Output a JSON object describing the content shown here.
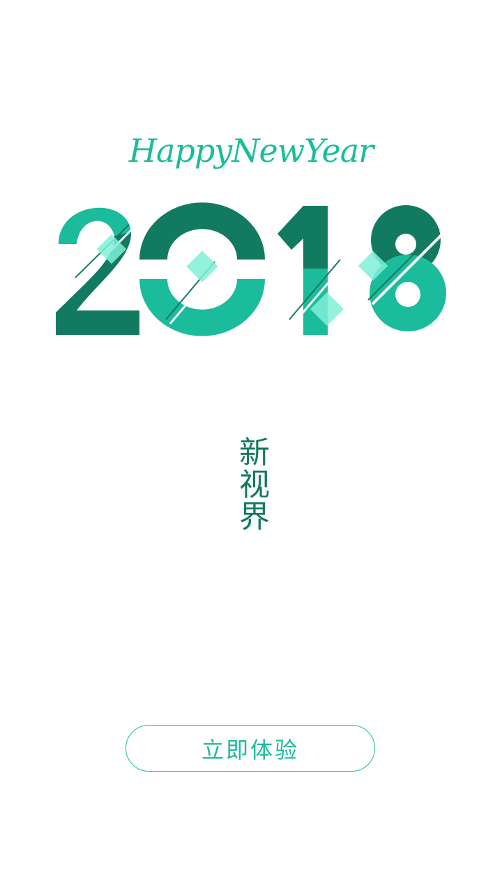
{
  "header": {
    "greeting": "HappyNewYear"
  },
  "hero": {
    "year": "2018"
  },
  "slogan": {
    "text": "新视界"
  },
  "cta": {
    "label": "立即体验"
  },
  "colors": {
    "background": "#ffffff",
    "primary_green": "#1bbc9b",
    "dark_green": "#137a62",
    "mint_accent": "#7ff0d8"
  }
}
